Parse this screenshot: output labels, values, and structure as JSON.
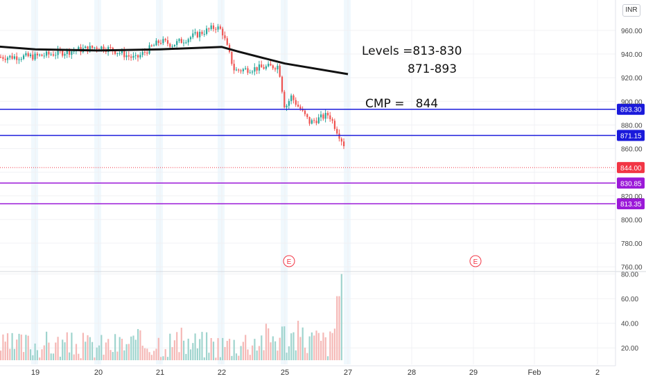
{
  "chart_data": {
    "type": "candlestick",
    "currency": "INR",
    "x_ticks": [
      "19",
      "20",
      "21",
      "22",
      "25",
      "27",
      "28",
      "29",
      "Feb",
      "2"
    ],
    "price_ticks": [
      "960.00",
      "940.00",
      "920.00",
      "900.00",
      "880.00",
      "860.00",
      "840.00",
      "820.00",
      "800.00",
      "780.00",
      "760.00"
    ],
    "volume_ticks": [
      "80.00",
      "60.00",
      "40.00",
      "20.00"
    ],
    "price_ylim": [
      756,
      974
    ],
    "volume_ylim": [
      10,
      82
    ],
    "levels": [
      {
        "label": "893.30",
        "value": 893.3,
        "color": "#1a1adb"
      },
      {
        "label": "871.15",
        "value": 871.15,
        "color": "#1a1adb"
      },
      {
        "label": "830.85",
        "value": 830.85,
        "color": "#9b19d8"
      },
      {
        "label": "813.35",
        "value": 813.35,
        "color": "#9b19d8"
      }
    ],
    "last_price": {
      "label": "844.00",
      "value": 844,
      "color": "#f23645"
    },
    "up_color": "#26a69a",
    "down_color": "#ef5350",
    "moving_average": [
      {
        "date": "18",
        "v": 948
      },
      {
        "date": "19",
        "v": 944
      },
      {
        "date": "20",
        "v": 943
      },
      {
        "date": "21",
        "v": 944
      },
      {
        "date": "22",
        "v": 946
      },
      {
        "date": "22.8",
        "v": 942
      },
      {
        "date": "25",
        "v": 932
      },
      {
        "date": "27",
        "v": 923
      }
    ],
    "candle_segments": [
      {
        "date": "18",
        "o": 937,
        "c": 938
      },
      {
        "date": "19",
        "o": 938,
        "c": 946
      },
      {
        "date": "20",
        "o": 946,
        "c": 944
      },
      {
        "date": "20.2",
        "o": 944,
        "c": 936
      },
      {
        "date": "20.6",
        "o": 936,
        "c": 951
      },
      {
        "date": "21",
        "o": 951,
        "c": 948
      },
      {
        "date": "21.2",
        "o": 948,
        "c": 963
      },
      {
        "date": "21.9",
        "o": 963,
        "c": 960
      },
      {
        "date": "22",
        "o": 960,
        "c": 926
      },
      {
        "date": "22.6",
        "o": 926,
        "c": 930
      },
      {
        "date": "24.7",
        "o": 930,
        "c": 894
      },
      {
        "date": "25",
        "o": 894,
        "c": 904
      },
      {
        "date": "25.2",
        "o": 904,
        "c": 882
      },
      {
        "date": "25.8",
        "o": 882,
        "c": 889
      },
      {
        "date": "26.4",
        "o": 889,
        "c": 862
      },
      {
        "date": "26.9",
        "o": 862,
        "c": 844
      }
    ],
    "volume_profile": [
      {
        "date": "18",
        "v": 22
      },
      {
        "date": "19",
        "v": 26
      },
      {
        "date": "20",
        "v": 24
      },
      {
        "date": "21",
        "v": 28
      },
      {
        "date": "22",
        "v": 25
      },
      {
        "date": "25",
        "v": 34
      },
      {
        "date": "26.5",
        "v": 27
      },
      {
        "date": "26.9",
        "v": 78
      }
    ],
    "events": [
      {
        "date": "25",
        "label": "E"
      },
      {
        "date": "29",
        "label": "E"
      }
    ],
    "annotations": {
      "levels_line1": "Levels =813-830",
      "levels_line2": "871-893",
      "cmp": "CMP =   844"
    }
  }
}
